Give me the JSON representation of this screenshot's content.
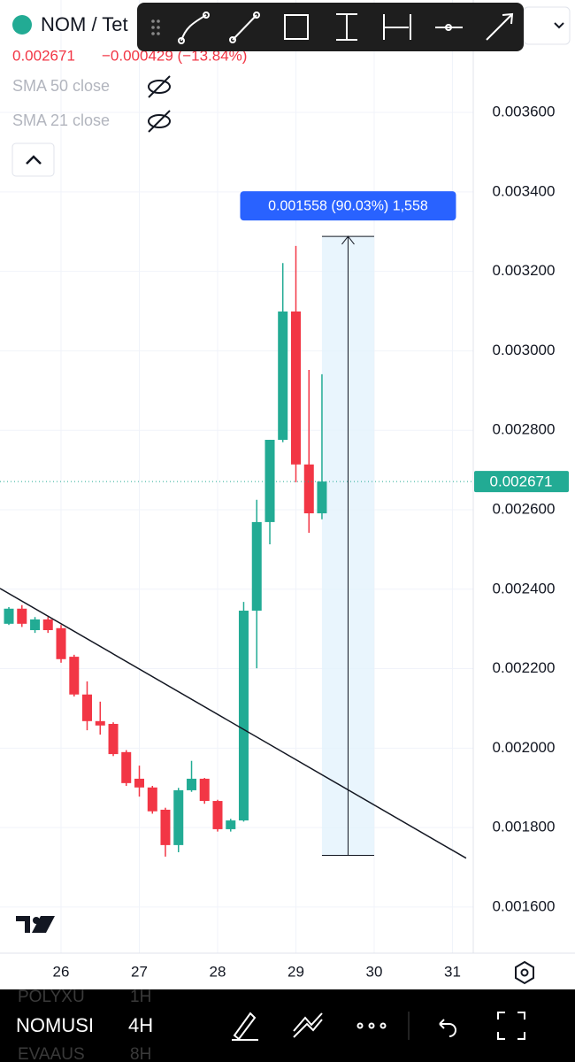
{
  "header": {
    "symbol": "NOM / Tet",
    "price": "0.002671",
    "change": "−0.000429 (−13.84%)"
  },
  "indicators": [
    "SMA 50 close",
    "SMA 21 close"
  ],
  "bottom_bar": {
    "symbols": [
      "POLYXU",
      "NOMUSI",
      "EVAAUS"
    ],
    "intervals": [
      "1H",
      "4H",
      "8H"
    ]
  },
  "chart_data": {
    "type": "candlestick",
    "x": [
      25.333,
      25.5,
      25.667,
      25.833,
      26.0,
      26.167,
      26.333,
      26.5,
      26.667,
      26.833,
      27.0,
      27.167,
      27.333,
      27.5,
      27.667,
      27.833,
      28.0,
      28.167,
      28.333,
      28.5,
      28.667,
      28.833,
      29.0,
      29.167,
      29.333
    ],
    "open": [
      0.002313,
      0.002351,
      0.002297,
      0.002324,
      0.002302,
      0.00223,
      0.002135,
      0.002068,
      0.002061,
      0.00199,
      0.001923,
      0.001901,
      0.001845,
      0.001756,
      0.001894,
      0.001923,
      0.001867,
      0.001796,
      0.001818,
      0.002346,
      0.002569,
      0.002776,
      0.003099,
      0.002714,
      0.002591
    ],
    "high": [
      0.002355,
      0.00236,
      0.00233,
      0.00233,
      0.00231,
      0.002235,
      0.002168,
      0.002117,
      0.002065,
      0.001995,
      0.001956,
      0.001905,
      0.00185,
      0.0019,
      0.001968,
      0.001925,
      0.00187,
      0.001822,
      0.002368,
      0.002625,
      0.002776,
      0.003221,
      0.003264,
      0.002952,
      0.002941
    ],
    "low": [
      0.00231,
      0.002305,
      0.00229,
      0.00229,
      0.002215,
      0.00213,
      0.002045,
      0.002034,
      0.00198,
      0.001905,
      0.001878,
      0.001835,
      0.001727,
      0.001738,
      0.00189,
      0.00186,
      0.00179,
      0.00179,
      0.001815,
      0.002201,
      0.002513,
      0.00277,
      0.002669,
      0.002542,
      0.002576
    ],
    "close": [
      0.002351,
      0.002313,
      0.002324,
      0.002297,
      0.002224,
      0.002135,
      0.002068,
      0.002057,
      0.001985,
      0.001912,
      0.001901,
      0.001841,
      0.001756,
      0.001894,
      0.001923,
      0.001867,
      0.001796,
      0.001818,
      0.002346,
      0.002569,
      0.002776,
      0.003099,
      0.002714,
      0.002591,
      0.002671
    ],
    "up_color": "#22ab94",
    "down_color": "#f23645",
    "xlim": [
      25.22,
      31.266
    ],
    "ylim": [
      0.001484,
      0.003883
    ],
    "xticks": [
      26,
      27,
      28,
      29,
      30,
      31
    ],
    "yticks": [
      {
        "value": 0.0016,
        "label": "0.001600"
      },
      {
        "value": 0.0018,
        "label": "0.001800"
      },
      {
        "value": 0.002,
        "label": "0.002000"
      },
      {
        "value": 0.0022,
        "label": "0.002200"
      },
      {
        "value": 0.0024,
        "label": "0.002400"
      },
      {
        "value": 0.0026,
        "label": "0.002600"
      },
      {
        "value": 0.0028,
        "label": "0.002800"
      },
      {
        "value": 0.003,
        "label": "0.003000"
      },
      {
        "value": 0.0032,
        "label": "0.003200"
      },
      {
        "value": 0.0034,
        "label": "0.003400"
      },
      {
        "value": 0.0036,
        "label": "0.003600"
      }
    ],
    "grid": true,
    "trend_line": {
      "x": [
        25.22,
        31.175
      ],
      "y": [
        0.002402,
        0.001723
      ]
    },
    "measure": {
      "x": [
        29.333,
        30.0
      ],
      "y": [
        0.00173,
        0.003288
      ],
      "label": "0.001558 (90.03%) 1,558"
    }
  }
}
